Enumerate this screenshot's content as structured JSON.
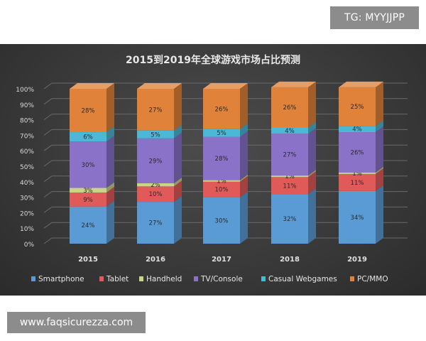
{
  "watermark_text": "TG: MYYJJPP",
  "source_text": "www.faqsicurezza.com",
  "chart_data": {
    "type": "bar",
    "stacked": true,
    "title": "2015到2019年全球游戏市场占比预测",
    "categories": [
      "2015",
      "2016",
      "2017",
      "2018",
      "2019"
    ],
    "yticks": [
      "0%",
      "10%",
      "20%",
      "30%",
      "40%",
      "50%",
      "60%",
      "70%",
      "80%",
      "90%",
      "100%"
    ],
    "ylim": [
      0,
      100
    ],
    "grid": true,
    "legend_position": "bottom",
    "series": [
      {
        "name": "Smartphone",
        "color": "#5b9bd5",
        "values": [
          24,
          27,
          30,
          32,
          34
        ],
        "labels": [
          "24%",
          "27%",
          "30%",
          "32%",
          "34%"
        ]
      },
      {
        "name": "Tablet",
        "color": "#e05a5a",
        "values": [
          9,
          10,
          10,
          11,
          11
        ],
        "labels": [
          "9%",
          "10%",
          "10%",
          "11%",
          "11%"
        ]
      },
      {
        "name": "Handheld",
        "color": "#c8d48a",
        "values": [
          3,
          2,
          1,
          1,
          1
        ],
        "labels": [
          "3%",
          "2%",
          "1%",
          "1%",
          "1%"
        ]
      },
      {
        "name": "TV/Console",
        "color": "#8a72c8",
        "values": [
          30,
          29,
          28,
          27,
          26
        ],
        "labels": [
          "30%",
          "29%",
          "28%",
          "27%",
          "26%"
        ]
      },
      {
        "name": "Casual Webgames",
        "color": "#4bb8d6",
        "values": [
          6,
          5,
          5,
          4,
          4
        ],
        "labels": [
          "6%",
          "5%",
          "5%",
          "4%",
          "4%"
        ]
      },
      {
        "name": "PC/MMO",
        "color": "#e0823a",
        "values": [
          28,
          27,
          26,
          26,
          25
        ],
        "labels": [
          "28%",
          "27%",
          "26%",
          "26%",
          "25%"
        ]
      }
    ]
  }
}
